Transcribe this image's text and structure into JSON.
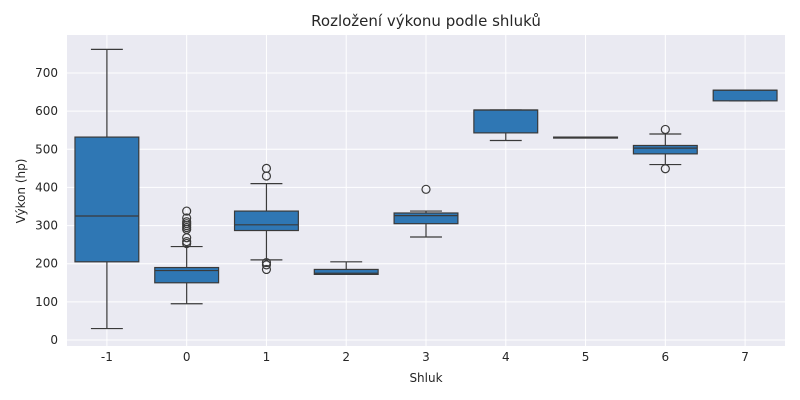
{
  "chart_data": {
    "type": "box",
    "title": "Rozložení výkonu podle shluků",
    "xlabel": "Shluk",
    "ylabel": "Výkon (hp)",
    "categories": [
      "-1",
      "0",
      "1",
      "2",
      "3",
      "4",
      "5",
      "6",
      "7"
    ],
    "ylim": [
      0,
      800
    ],
    "yticks": [
      0,
      100,
      200,
      300,
      400,
      500,
      600,
      700
    ],
    "grid": true,
    "colors": {
      "box": "#2f77b4",
      "edge": "#3a3a3a",
      "background": "#eaeaf2",
      "grid": "#ffffff"
    },
    "boxes": [
      {
        "category": "-1",
        "whisker_low": 30,
        "q1": 205,
        "median": 325,
        "q3": 532,
        "whisker_high": 762,
        "outliers": []
      },
      {
        "category": "0",
        "whisker_low": 95,
        "q1": 150,
        "median": 182,
        "q3": 190,
        "whisker_high": 245,
        "outliers": [
          253,
          258,
          268,
          290,
          295,
          300,
          305,
          310,
          320,
          338
        ]
      },
      {
        "category": "1",
        "whisker_low": 210,
        "q1": 287,
        "median": 302,
        "q3": 338,
        "whisker_high": 410,
        "outliers": [
          185,
          197,
          203,
          430,
          450
        ]
      },
      {
        "category": "2",
        "whisker_low": 172,
        "q1": 172,
        "median": 175,
        "q3": 185,
        "whisker_high": 205,
        "outliers": []
      },
      {
        "category": "3",
        "whisker_low": 270,
        "q1": 305,
        "median": 326,
        "q3": 333,
        "whisker_high": 338,
        "outliers": [
          395
        ]
      },
      {
        "category": "4",
        "whisker_low": 523,
        "q1": 543,
        "median": 603,
        "q3": 603,
        "whisker_high": 603,
        "outliers": []
      },
      {
        "category": "5",
        "whisker_low": 530,
        "q1": 530,
        "median": 530,
        "q3": 532,
        "whisker_high": 532,
        "outliers": []
      },
      {
        "category": "6",
        "whisker_low": 460,
        "q1": 488,
        "median": 503,
        "q3": 510,
        "whisker_high": 540,
        "outliers": [
          449,
          552
        ]
      },
      {
        "category": "7",
        "whisker_low": 627,
        "q1": 627,
        "median": 655,
        "q3": 655,
        "whisker_high": 655,
        "outliers": []
      }
    ]
  }
}
